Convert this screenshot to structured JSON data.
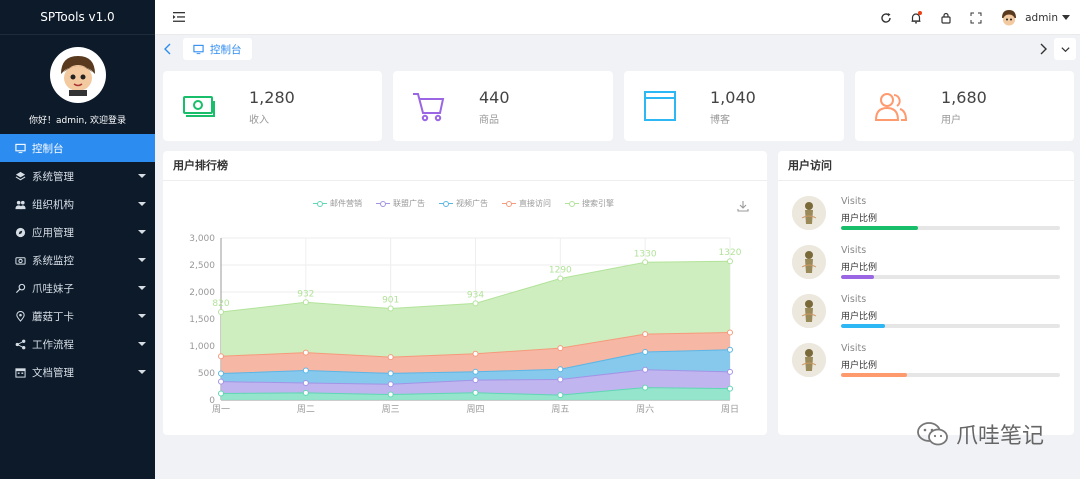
{
  "app": {
    "title": "SPTools v1.0",
    "welcome": "你好！admin, 欢迎登录"
  },
  "sidebar": {
    "items": [
      {
        "label": "控制台",
        "icon": "monitor-icon",
        "active": true,
        "caret": false
      },
      {
        "label": "系统管理",
        "icon": "layers-icon",
        "caret": true
      },
      {
        "label": "组织机构",
        "icon": "users-icon",
        "caret": true
      },
      {
        "label": "应用管理",
        "icon": "compass-icon",
        "caret": true
      },
      {
        "label": "系统监控",
        "icon": "camera-icon",
        "caret": true
      },
      {
        "label": "爪哇妹子",
        "icon": "key-icon",
        "caret": true
      },
      {
        "label": "蘑菇丁卡",
        "icon": "location-icon",
        "caret": true
      },
      {
        "label": "工作流程",
        "icon": "share-icon",
        "caret": true
      },
      {
        "label": "文档管理",
        "icon": "calendar-icon",
        "caret": true
      }
    ]
  },
  "header": {
    "username": "admin"
  },
  "tabs": [
    {
      "label": "控制台"
    }
  ],
  "stats": [
    {
      "value": "1,280",
      "label": "收入",
      "color": "#19be6b",
      "icon": "money-icon"
    },
    {
      "value": "440",
      "label": "商品",
      "color": "#9a66e4",
      "icon": "cart-icon"
    },
    {
      "value": "1,040",
      "label": "博客",
      "color": "#2db7f5",
      "icon": "browser-icon"
    },
    {
      "value": "1,680",
      "label": "用户",
      "color": "#ff9a6e",
      "icon": "people-icon"
    }
  ],
  "ranking_panel": {
    "title": "用户排行榜"
  },
  "visit_panel": {
    "title": "用户访问",
    "items": [
      {
        "title": "Visits",
        "subtitle": "用户比例",
        "percent": 35,
        "color": "#19be6b"
      },
      {
        "title": "Visits",
        "subtitle": "用户比例",
        "percent": 15,
        "color": "#9a66e4"
      },
      {
        "title": "Visits",
        "subtitle": "用户比例",
        "percent": 20,
        "color": "#2db7f5"
      },
      {
        "title": "Visits",
        "subtitle": "用户比例",
        "percent": 30,
        "color": "#ff9a6e"
      }
    ]
  },
  "watermark": "爪哇笔记",
  "chart_data": {
    "type": "area",
    "stacked": true,
    "categories": [
      "周一",
      "周二",
      "周三",
      "周四",
      "周五",
      "周六",
      "周日"
    ],
    "ylim": [
      0,
      3000
    ],
    "yticks": [
      0,
      500,
      1000,
      1500,
      2000,
      2500,
      3000
    ],
    "ytick_labels": [
      "0",
      "500",
      "1,000",
      "1,500",
      "2,000",
      "2,500",
      "3,000"
    ],
    "legend_position": "top",
    "grid": true,
    "series": [
      {
        "name": "邮件营销",
        "color": "#5fd7b4",
        "fill": "#8fe3c9",
        "values": [
          120,
          132,
          101,
          134,
          90,
          230,
          210
        ]
      },
      {
        "name": "联盟广告",
        "color": "#a394e6",
        "fill": "#bdb1ee",
        "values": [
          220,
          182,
          191,
          234,
          290,
          330,
          310
        ]
      },
      {
        "name": "视频广告",
        "color": "#5bb6e6",
        "fill": "#7fc6ec",
        "values": [
          150,
          232,
          201,
          154,
          190,
          330,
          410
        ]
      },
      {
        "name": "直接访问",
        "color": "#f59a7c",
        "fill": "#f7b3a0",
        "values": [
          320,
          332,
          301,
          334,
          390,
          330,
          320
        ]
      },
      {
        "name": "搜索引擎",
        "color": "#b2e39a",
        "fill": "#ccedbc",
        "values": [
          820,
          932,
          901,
          934,
          1290,
          1330,
          1320
        ]
      }
    ],
    "data_labels_series": "搜索引擎"
  }
}
